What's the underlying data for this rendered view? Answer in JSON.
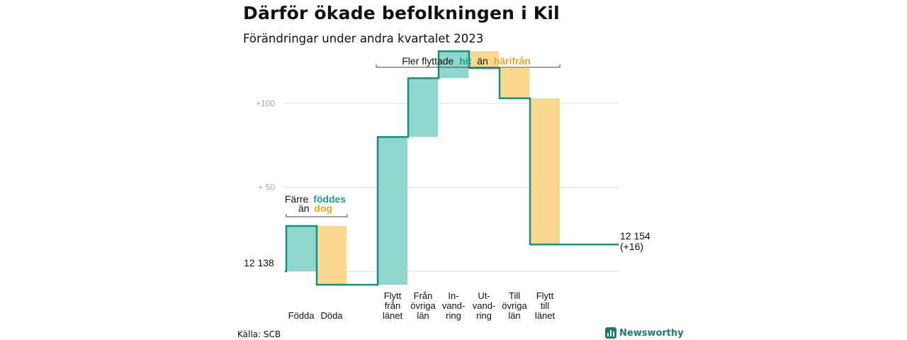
{
  "title": "Därför ökade befolkningen i Kil",
  "subtitle": "Förändringar under andra kvartalet 2023",
  "source": "Källa: SCB",
  "brand": {
    "name": "Newsworthy",
    "icon": "bar-chart-logo-icon"
  },
  "colors": {
    "teal": "#8fd6cc",
    "orange": "#fad890",
    "line": "#17917f",
    "teal_text": "#1e9c8c",
    "orange_text": "#f0a52a",
    "grid": "#dddddd"
  },
  "annotations": {
    "top": {
      "before": "Fler flyttade",
      "hit": "hit",
      "middle": "än",
      "harifran": "härifrån"
    },
    "left": {
      "line1_before": "Färre",
      "fodda": "föddes",
      "line2_before": "än",
      "dog": "dog"
    }
  },
  "chart_data": {
    "type": "waterfall",
    "title": "Därför ökade befolkningen i Kil",
    "subtitle": "Förändringar under andra kvartalet 2023",
    "start_value": 12138,
    "start_label": "12  138",
    "end_value": 12154,
    "end_label_line1": "12 154",
    "end_label_line2": "(+16)",
    "y_ticks": [
      {
        "value": 50,
        "label": "+  50"
      },
      {
        "value": 100,
        "label": "+100"
      }
    ],
    "ylim": [
      -8,
      132
    ],
    "grid": true,
    "categories": [
      {
        "label_lines": [
          "Födda"
        ],
        "change": 27,
        "kind": "in"
      },
      {
        "label_lines": [
          "Döda"
        ],
        "change": -35,
        "kind": "out"
      },
      {
        "label_lines": [
          "Flytt",
          "från",
          "länet"
        ],
        "change": 88,
        "kind": "in"
      },
      {
        "label_lines": [
          "Från",
          "övriga",
          "län"
        ],
        "change": 35,
        "kind": "in"
      },
      {
        "label_lines": [
          "In-",
          "vand-",
          "ring"
        ],
        "change": 16,
        "kind": "in"
      },
      {
        "label_lines": [
          "Ut-",
          "vand-",
          "ring"
        ],
        "change": -10,
        "kind": "out"
      },
      {
        "label_lines": [
          "Till",
          "övriga",
          "län"
        ],
        "change": -18,
        "kind": "out"
      },
      {
        "label_lines": [
          "Flytt",
          "till",
          "länet"
        ],
        "change": -87,
        "kind": "out"
      }
    ]
  }
}
